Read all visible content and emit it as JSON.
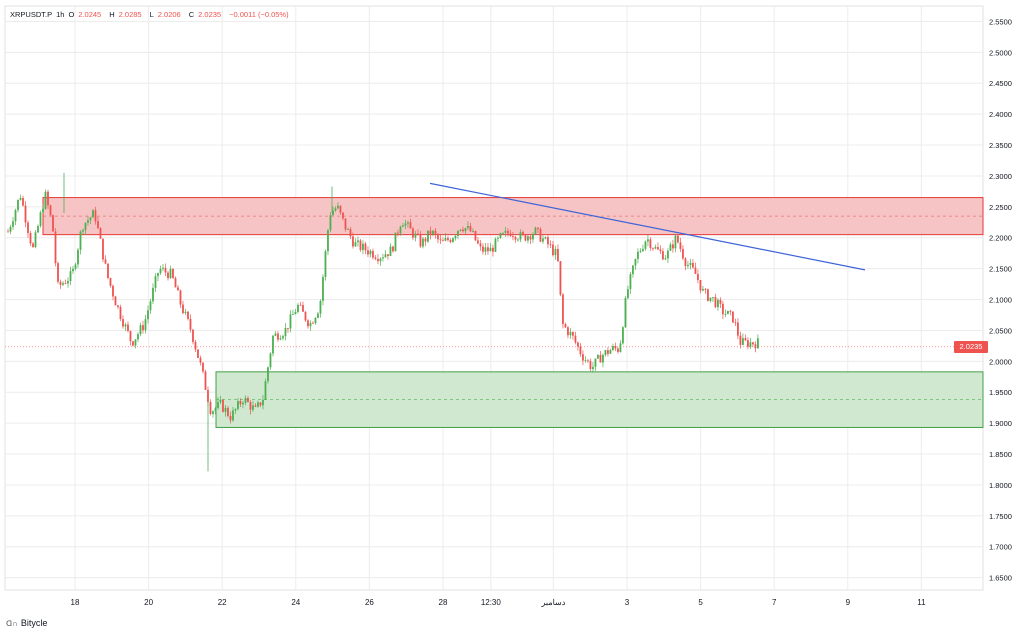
{
  "legend": {
    "symbol": "XRPUSDT.P",
    "interval": "1h",
    "open_label": "O",
    "open": "2.0245",
    "high_label": "H",
    "high": "2.0285",
    "low_label": "L",
    "low": "2.0206",
    "close_label": "C",
    "close": "2.0235",
    "change": "−0.0011 (−0.05%)"
  },
  "footer": {
    "brand": "Bitycle",
    "logo_glyph": "ᗡ∩"
  },
  "last_price_label": "2.0235",
  "colors": {
    "up": "#4caf50",
    "down": "#ef5350",
    "resistance_zone": "#f7c4c6",
    "support_zone": "#cfe8cf",
    "trendline": "#3d64d8",
    "grid": "#ececec"
  },
  "chart_data": {
    "type": "candlestick",
    "ylim": [
      1.63,
      2.575
    ],
    "y_ticks": [
      "2.5500",
      "2.5000",
      "2.4500",
      "2.4000",
      "2.3500",
      "2.3000",
      "2.2500",
      "2.2000",
      "2.1500",
      "2.1000",
      "2.0500",
      "2.0000",
      "1.9500",
      "1.9000",
      "1.8500",
      "1.8000",
      "1.7500",
      "1.7000",
      "1.6500"
    ],
    "y_tick_values": [
      2.55,
      2.5,
      2.45,
      2.4,
      2.35,
      2.3,
      2.25,
      2.2,
      2.15,
      2.1,
      2.05,
      2.0,
      1.95,
      1.9,
      1.85,
      1.8,
      1.75,
      1.7,
      1.65
    ],
    "x_ticks": [
      "18",
      "20",
      "22",
      "24",
      "26",
      "28",
      "12:30",
      "دسامبر",
      "3",
      "5",
      "7",
      "9",
      "11"
    ],
    "x_tick_slots": [
      0,
      1,
      2,
      3,
      4,
      5,
      5.65,
      6.5,
      7.5,
      8.5,
      9.5,
      10.5,
      11.5
    ],
    "last_price": 2.0235,
    "zones": [
      {
        "name": "resistance",
        "top": 2.265,
        "bottom": 2.205,
        "mid": 2.235
      },
      {
        "name": "support",
        "top": 1.983,
        "bottom": 1.893,
        "mid": 1.938
      }
    ],
    "trendline": {
      "from_price": 2.288,
      "to_price": 2.148
    },
    "path_keypoints": [
      [
        0,
        2.21
      ],
      [
        0.5,
        2.27
      ],
      [
        1.0,
        2.18
      ],
      [
        1.5,
        2.27
      ],
      [
        1.8,
        2.22
      ],
      [
        2.0,
        2.12
      ],
      [
        2.6,
        2.14
      ],
      [
        3.0,
        2.22
      ],
      [
        3.5,
        2.24
      ],
      [
        4.0,
        2.14
      ],
      [
        4.4,
        2.09
      ],
      [
        5.0,
        2.03
      ],
      [
        5.5,
        2.06
      ],
      [
        6.1,
        2.15
      ],
      [
        6.6,
        2.14
      ],
      [
        7.0,
        2.09
      ],
      [
        7.4,
        2.05
      ],
      [
        7.8,
        1.99
      ],
      [
        8.2,
        1.92
      ],
      [
        8.6,
        1.93
      ],
      [
        9.0,
        1.91
      ],
      [
        9.5,
        1.94
      ],
      [
        10.0,
        1.92
      ],
      [
        10.3,
        1.94
      ],
      [
        10.7,
        2.04
      ],
      [
        11.2,
        2.05
      ],
      [
        11.7,
        2.09
      ],
      [
        12.2,
        2.06
      ],
      [
        12.6,
        2.09
      ],
      [
        13.0,
        2.24
      ],
      [
        13.3,
        2.25
      ],
      [
        13.6,
        2.22
      ],
      [
        14.0,
        2.19
      ],
      [
        14.5,
        2.18
      ],
      [
        15.0,
        2.17
      ],
      [
        15.5,
        2.18
      ],
      [
        15.9,
        2.23
      ],
      [
        16.3,
        2.21
      ],
      [
        16.7,
        2.19
      ],
      [
        17.1,
        2.21
      ],
      [
        17.5,
        2.19
      ],
      [
        17.9,
        2.2
      ],
      [
        18.3,
        2.22
      ],
      [
        18.7,
        2.21
      ],
      [
        19.1,
        2.18
      ],
      [
        19.5,
        2.18
      ],
      [
        19.9,
        2.2
      ],
      [
        20.3,
        2.21
      ],
      [
        20.8,
        2.2
      ],
      [
        21.3,
        2.21
      ],
      [
        21.8,
        2.19
      ],
      [
        22.2,
        2.17
      ],
      [
        22.4,
        2.06
      ],
      [
        22.8,
        2.04
      ],
      [
        23.2,
        2.01
      ],
      [
        23.6,
        1.99
      ],
      [
        24.0,
        2.01
      ],
      [
        24.4,
        2.02
      ],
      [
        24.7,
        2.02
      ],
      [
        25.0,
        2.11
      ],
      [
        25.4,
        2.17
      ],
      [
        25.8,
        2.2
      ],
      [
        26.2,
        2.18
      ],
      [
        26.6,
        2.17
      ],
      [
        27.0,
        2.2
      ],
      [
        27.4,
        2.16
      ],
      [
        27.8,
        2.14
      ],
      [
        28.1,
        2.11
      ],
      [
        28.5,
        2.1
      ],
      [
        28.9,
        2.08
      ],
      [
        29.3,
        2.07
      ],
      [
        29.6,
        2.03
      ],
      [
        30.0,
        2.03
      ],
      [
        30.3,
        2.03
      ]
    ]
  }
}
